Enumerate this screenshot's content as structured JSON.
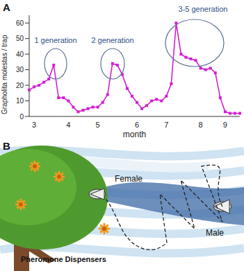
{
  "chart_data": {
    "type": "line",
    "title": "A",
    "x_label": "month",
    "y_label": "Grapholita molestas / trap",
    "categories": [
      null,
      "3",
      null,
      null,
      null,
      null,
      null,
      null,
      "4",
      null,
      null,
      null,
      null,
      null,
      "5",
      null,
      null,
      null,
      null,
      null,
      null,
      null,
      "6",
      null,
      null,
      null,
      null,
      null,
      "7",
      null,
      null,
      null,
      null,
      null,
      null,
      "8",
      null,
      null,
      null,
      null,
      "9",
      null,
      null,
      null
    ],
    "values": [
      17,
      19,
      20,
      22,
      24,
      33,
      12,
      12,
      10,
      6,
      3,
      4,
      5,
      6,
      6,
      9,
      14,
      34,
      33,
      27,
      18,
      13,
      9,
      5,
      7,
      10,
      11,
      10,
      13,
      21,
      60,
      40,
      38,
      37,
      36,
      31,
      30,
      31,
      28,
      12,
      3,
      2,
      2,
      2
    ],
    "color": "#d21fd2",
    "marker": "square",
    "ylim": [
      0,
      65
    ],
    "yticks": [
      0,
      10,
      20,
      30,
      40,
      50,
      60
    ],
    "annotations": [
      "1 generation",
      "2 generation",
      "3-5 generation"
    ]
  },
  "diagram": {
    "title": "B",
    "labels": {
      "female": "Female",
      "male": "Male",
      "dispensers": "Pheromone Dispensers"
    }
  }
}
